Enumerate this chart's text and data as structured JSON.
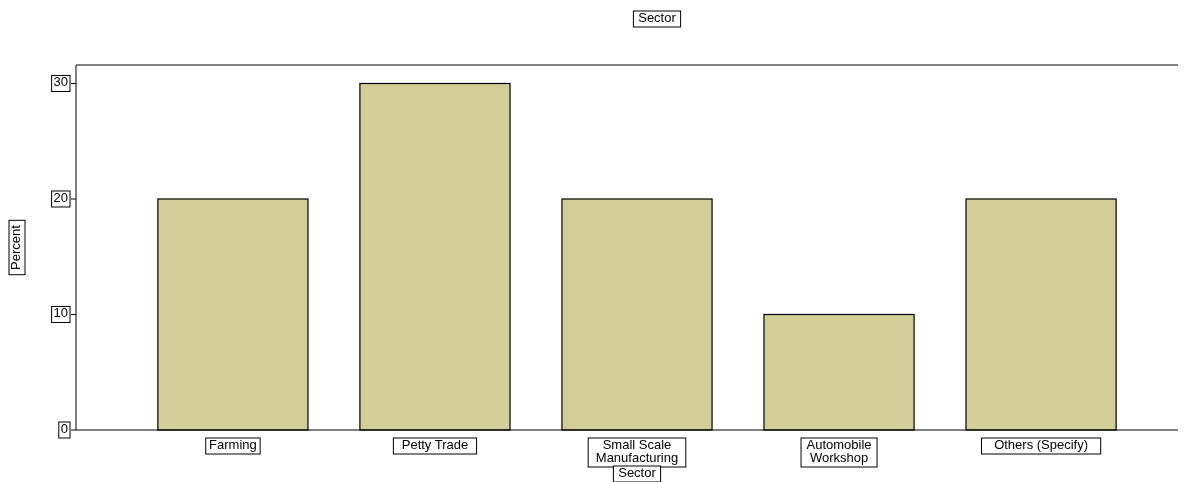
{
  "chart_data": {
    "type": "bar",
    "title": "Sector",
    "xlabel": "Sector",
    "ylabel": "Percent",
    "categories": [
      "Farming",
      "Petty Trade",
      "Small Scale Manufacturing",
      "Automobile Workshop",
      "Others (Specify)"
    ],
    "values": [
      20,
      30,
      20,
      10,
      20
    ],
    "color": "#d3ce98",
    "ylim": [
      0,
      31.6
    ],
    "yticks": [
      0,
      10,
      20,
      30
    ],
    "grid": false
  }
}
